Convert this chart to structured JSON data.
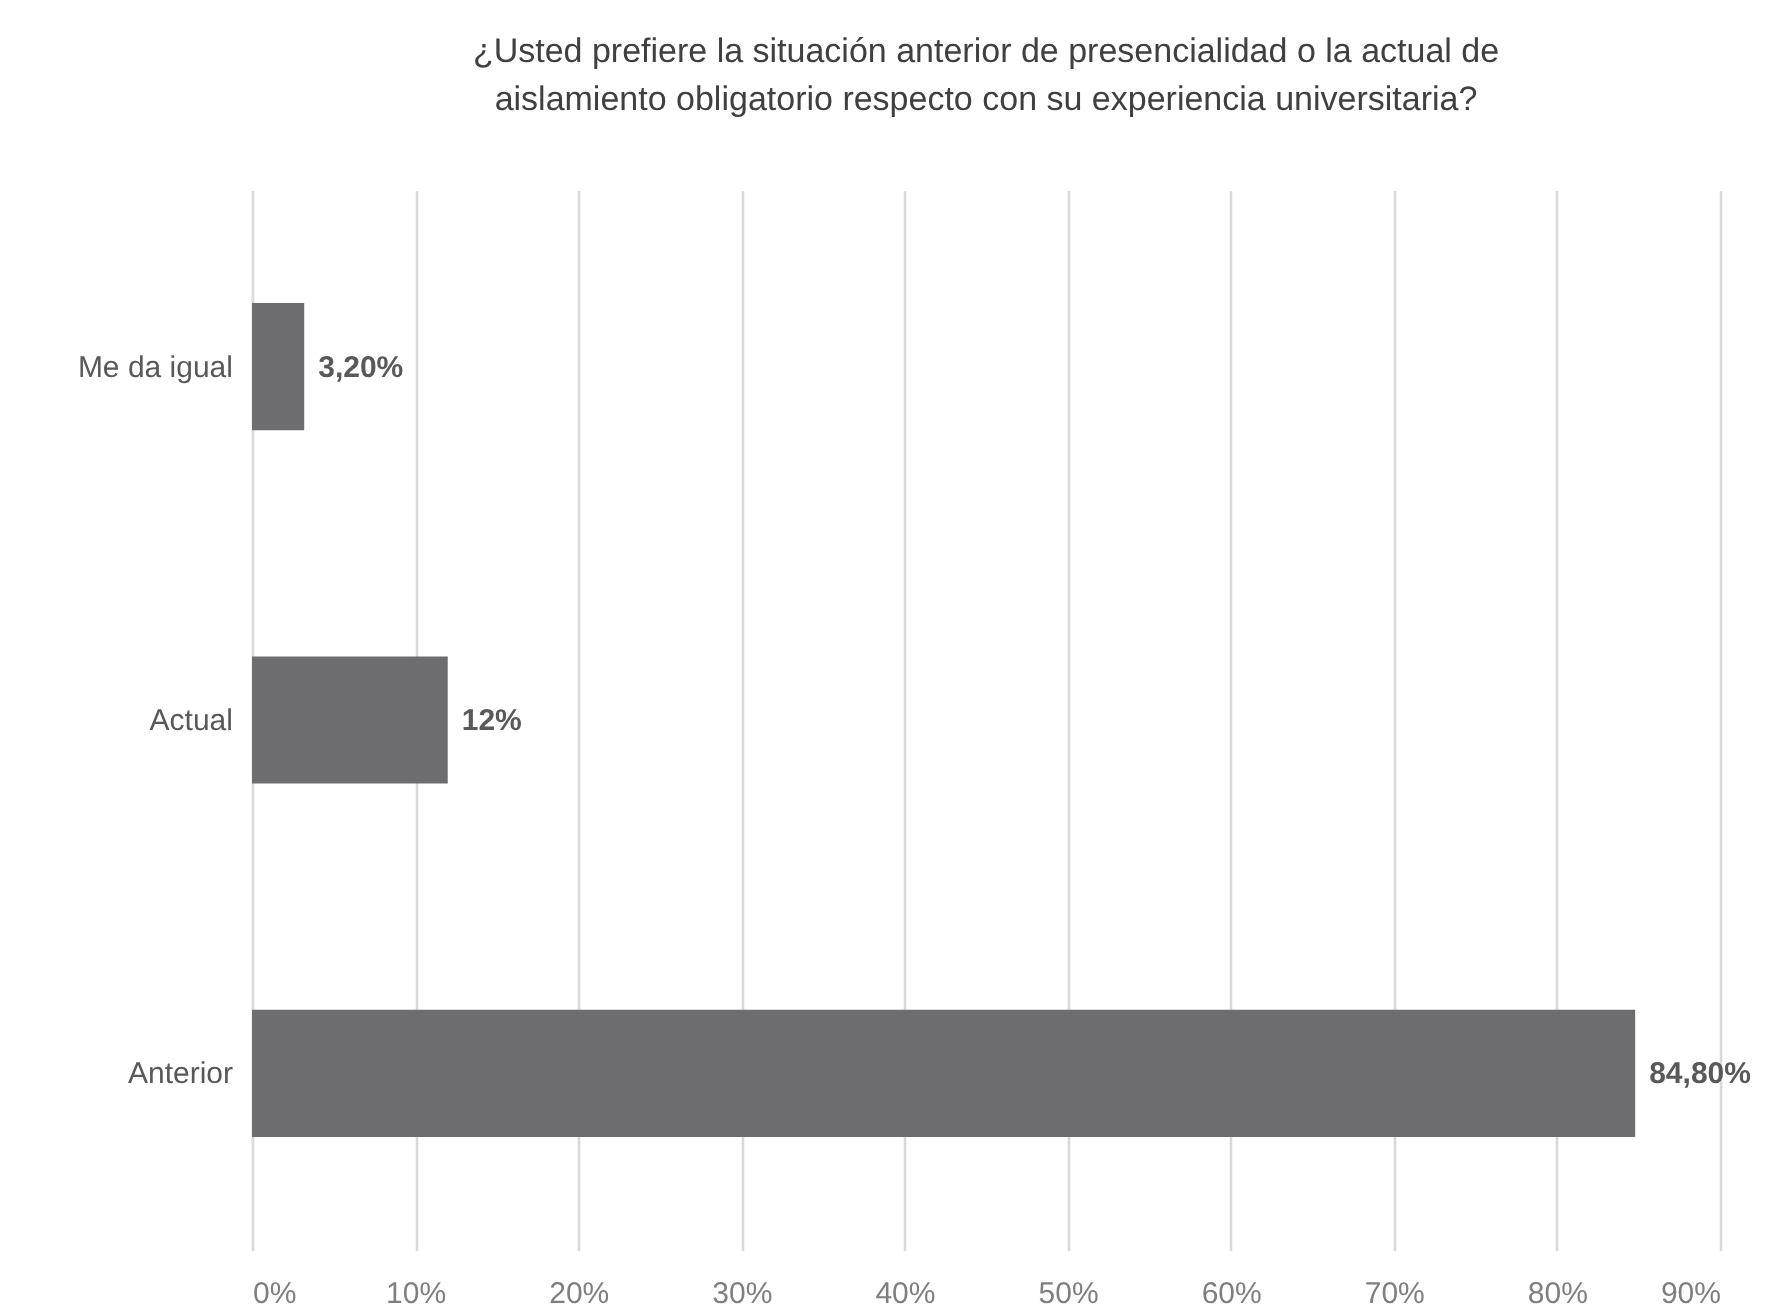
{
  "chart_data": {
    "type": "bar",
    "orientation": "horizontal",
    "title": "¿Usted prefiere la situación anterior de presencialidad o la actual de\naislamiento obligatorio respecto con su experiencia universitaria?",
    "categories": [
      "Me da igual",
      "Actual",
      "Anterior"
    ],
    "values": [
      3.2,
      12,
      84.8
    ],
    "value_labels": [
      "3,20%",
      "12%",
      "84,80%"
    ],
    "color": "#6d6d70",
    "xlim": [
      0,
      90
    ],
    "xticks": [
      {
        "value": 0,
        "label": "0%"
      },
      {
        "value": 10,
        "label": "10%"
      },
      {
        "value": 20,
        "label": "20%"
      },
      {
        "value": 30,
        "label": "30%"
      },
      {
        "value": 40,
        "label": "40%"
      },
      {
        "value": 50,
        "label": "50%"
      },
      {
        "value": 60,
        "label": "60%"
      },
      {
        "value": 70,
        "label": "70%"
      },
      {
        "value": 80,
        "label": "80%"
      },
      {
        "value": 90,
        "label": "90%"
      }
    ],
    "grid": "x"
  }
}
